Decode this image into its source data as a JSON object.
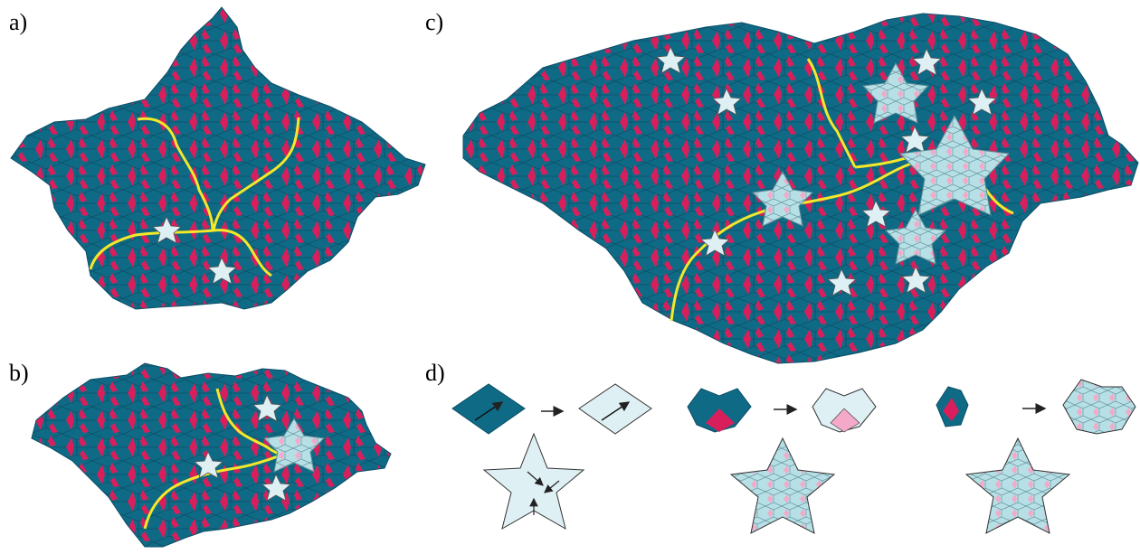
{
  "panels": {
    "a": {
      "label": "a)"
    },
    "b": {
      "label": "b)"
    },
    "c": {
      "label": "c)"
    },
    "d": {
      "label": "d)"
    }
  },
  "colors": {
    "teal_rhomb": "#0f6a86",
    "teal_edge": "#0a4f66",
    "magenta_rhomb": "#d81f5c",
    "yellow_path": "#f3e82a",
    "light_rhomb": "#dff0f4",
    "light_teal_rhomb": "#b7dfe6",
    "pink_rhomb": "#f3a9c7",
    "arrow": "#222222"
  },
  "icons": {
    "arrow": "right-arrow-icon",
    "star": "white-star-cluster-icon"
  }
}
